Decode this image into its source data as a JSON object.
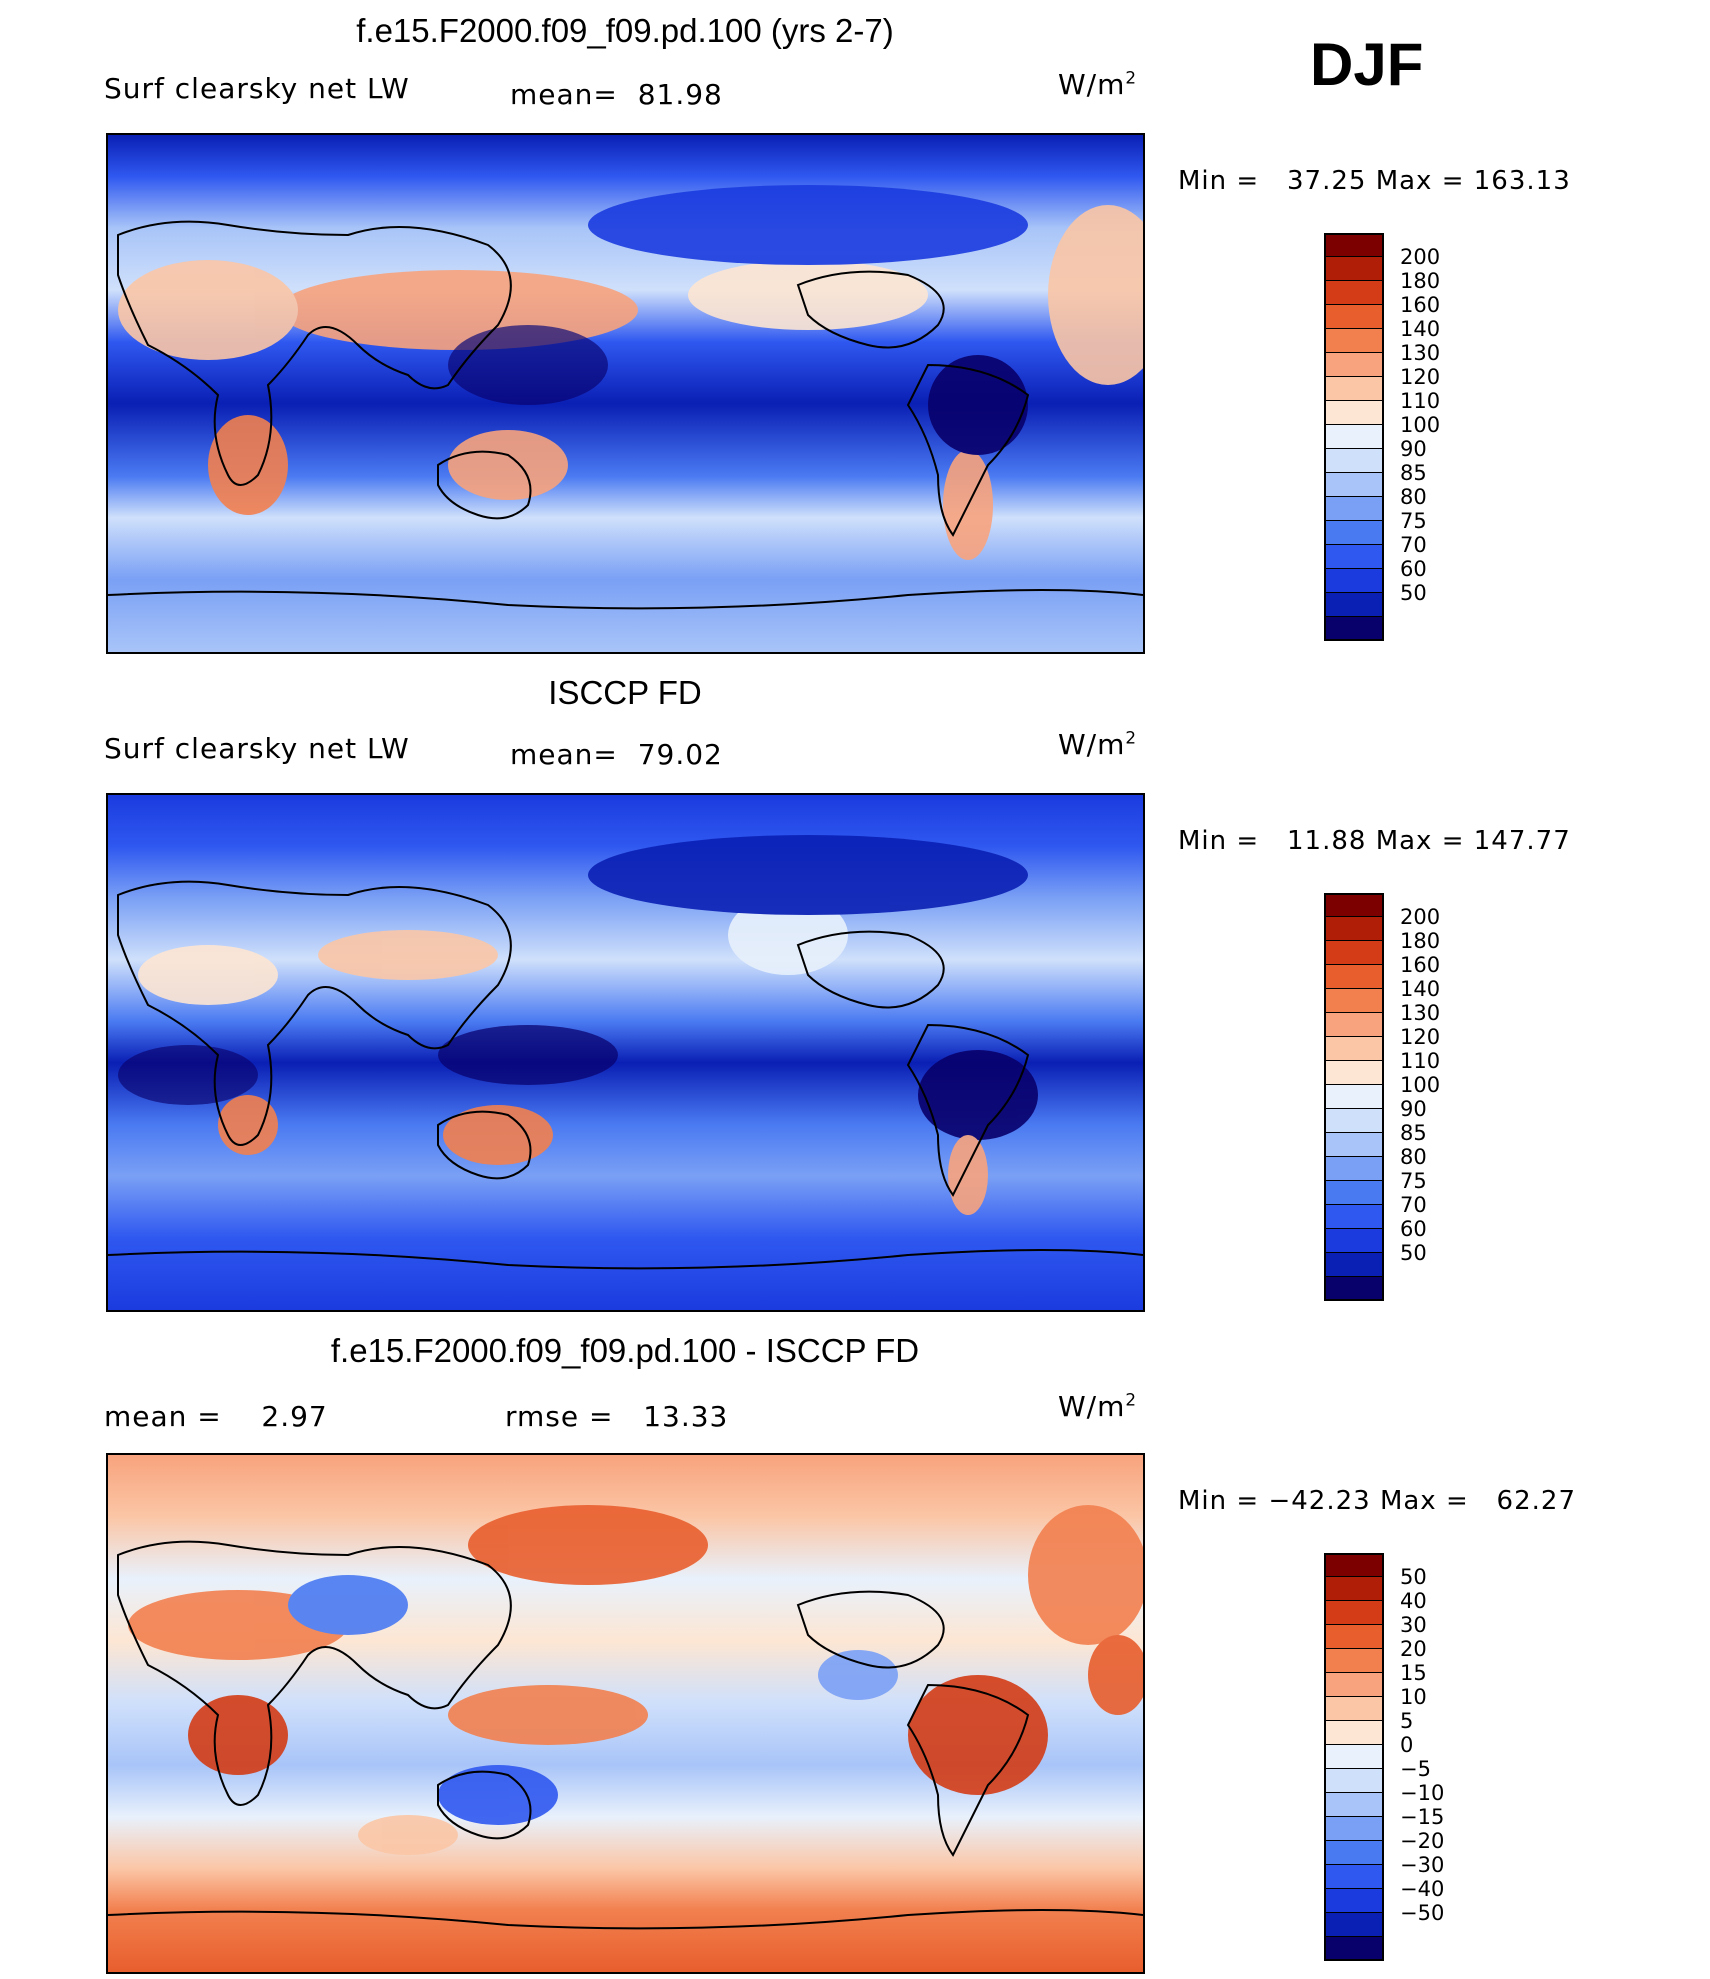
{
  "season": "DJF",
  "palette_main": [
    "#08006b",
    "#0a1fb4",
    "#1b3bdf",
    "#2f58f0",
    "#4a7af2",
    "#7aa0f5",
    "#a8c4f8",
    "#cfe0fb",
    "#e8f1fc",
    "#fde6d3",
    "#fbc6a6",
    "#f8a37d",
    "#f2804f",
    "#e85e2d",
    "#d33c16",
    "#b01e08",
    "#7d0000"
  ],
  "chart_data": [
    {
      "type": "heatmap",
      "title": "f.e15.F2000.f09_f09.pd.100 (yrs 2-7)",
      "left_label": "Surf clearsky net LW",
      "mean_label": "mean=",
      "mean_value": "81.98",
      "units_base": "W/m",
      "units_exp": "2",
      "min_label": "Min =",
      "min_value": "37.25",
      "max_label": "Max =",
      "max_value": "163.13",
      "colorbar_levels": [
        "200",
        "180",
        "160",
        "140",
        "130",
        "120",
        "110",
        "100",
        "90",
        "85",
        "80",
        "75",
        "70",
        "60",
        "50"
      ],
      "colormap": "blue-red diverging"
    },
    {
      "type": "heatmap",
      "title": "ISCCP FD",
      "left_label": "Surf clearsky net LW",
      "mean_label": "mean=",
      "mean_value": "79.02",
      "units_base": "W/m",
      "units_exp": "2",
      "min_label": "Min =",
      "min_value": "11.88",
      "max_label": "Max =",
      "max_value": "147.77",
      "colorbar_levels": [
        "200",
        "180",
        "160",
        "140",
        "130",
        "120",
        "110",
        "100",
        "90",
        "85",
        "80",
        "75",
        "70",
        "60",
        "50"
      ],
      "colormap": "blue-red diverging"
    },
    {
      "type": "heatmap",
      "title": "f.e15.F2000.f09_f09.pd.100 - ISCCP FD",
      "mean_label": "mean =",
      "mean_value": "2.97",
      "rmse_label": "rmse =",
      "rmse_value": "13.33",
      "units_base": "W/m",
      "units_exp": "2",
      "min_label": "Min =",
      "min_value": "−42.23",
      "max_label": "Max =",
      "max_value": "62.27",
      "colorbar_levels": [
        "50",
        "40",
        "30",
        "20",
        "15",
        "10",
        "5",
        "0",
        "−5",
        "−10",
        "−15",
        "−20",
        "−30",
        "−40",
        "−50"
      ],
      "colormap": "blue-red diverging"
    }
  ]
}
